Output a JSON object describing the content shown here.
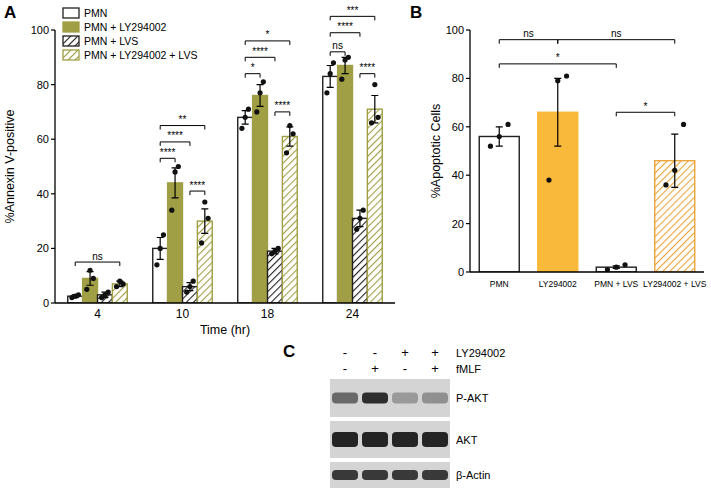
{
  "chart_data": [
    {
      "type": "bar",
      "panel_label": "A",
      "y_label": "%Annexin V-positive",
      "x_label": "Time (hr)",
      "categories": [
        "4",
        "10",
        "18",
        "24"
      ],
      "series": [
        {
          "name": "PMN",
          "color": "#231f20",
          "line_style": "open",
          "values": [
            2.5,
            20,
            68,
            83
          ],
          "errors": [
            0.5,
            4,
            2.5,
            4
          ],
          "points": [
            [
              2,
              2.5,
              3
            ],
            [
              14,
              20,
              25
            ],
            [
              64,
              68,
              71
            ],
            [
              77,
              84,
              88
            ]
          ]
        },
        {
          "name": "PMN + LY294002",
          "color": "#a09f45",
          "line_style": "solid",
          "values": [
            9,
            44,
            76,
            87
          ],
          "errors": [
            2.5,
            5.5,
            4,
            3
          ],
          "points": [
            [
              5,
              12,
              9
            ],
            [
              34,
              48,
              50
            ],
            [
              70,
              77,
              81
            ],
            [
              82,
              89,
              90
            ]
          ]
        },
        {
          "name": "PMN + LVS",
          "color": "#231f20",
          "line_style": "hatched",
          "values": [
            3,
            6,
            19,
            31
          ],
          "errors": [
            1,
            1.5,
            1,
            3
          ],
          "points": [
            [
              2,
              3,
              4
            ],
            [
              4,
              6,
              8
            ],
            [
              18,
              19,
              20
            ],
            [
              27,
              31,
              34
            ]
          ]
        },
        {
          "name": "PMN + LY294002 + LVS",
          "color": "#a09f45",
          "line_style": "hatched",
          "values": [
            7,
            30,
            61,
            71
          ],
          "errors": [
            1,
            4.5,
            3.5,
            5
          ],
          "points": [
            [
              6,
              8,
              7
            ],
            [
              22,
              37,
              31
            ],
            [
              55,
              65,
              62
            ],
            [
              66,
              80,
              68
            ]
          ]
        }
      ],
      "ylim": [
        0,
        100
      ],
      "yticks": [
        0,
        20,
        40,
        60,
        80,
        100
      ],
      "grid": false,
      "legend": "top-left",
      "annotations": [
        {
          "text": "ns",
          "from": [
            0,
            0
          ],
          "to": [
            0,
            3
          ],
          "y": 15
        },
        {
          "text": "****",
          "from": [
            1,
            0
          ],
          "to": [
            1,
            1
          ],
          "y": 53
        },
        {
          "text": "****",
          "from": [
            1,
            2
          ],
          "to": [
            1,
            3
          ],
          "y": 41
        },
        {
          "text": "****",
          "from": [
            1,
            0
          ],
          "to": [
            1,
            2
          ],
          "y": 59
        },
        {
          "text": "**",
          "from": [
            1,
            0
          ],
          "to": [
            1,
            3
          ],
          "y": 65
        },
        {
          "text": "*",
          "from": [
            2,
            0
          ],
          "to": [
            2,
            1
          ],
          "y": 84
        },
        {
          "text": "****",
          "from": [
            2,
            2
          ],
          "to": [
            2,
            3
          ],
          "y": 70
        },
        {
          "text": "****",
          "from": [
            2,
            0
          ],
          "to": [
            2,
            2
          ],
          "y": 90
        },
        {
          "text": "*",
          "from": [
            2,
            0
          ],
          "to": [
            2,
            3
          ],
          "y": 96
        },
        {
          "text": "ns",
          "from": [
            3,
            0
          ],
          "to": [
            3,
            1
          ],
          "y": 92
        },
        {
          "text": "****",
          "from": [
            3,
            2
          ],
          "to": [
            3,
            3
          ],
          "y": 84
        },
        {
          "text": "****",
          "from": [
            3,
            0
          ],
          "to": [
            3,
            2
          ],
          "y": 99
        },
        {
          "text": "***",
          "from": [
            3,
            0
          ],
          "to": [
            3,
            3
          ],
          "y": 105
        }
      ]
    },
    {
      "type": "bar",
      "panel_label": "B",
      "y_label": "%Apoptotic Cells",
      "categories": [
        "PMN",
        "LY294002",
        "PMN + LVS",
        "LY294002 + LVS"
      ],
      "series": [
        {
          "values": [
            56,
            66,
            2,
            46
          ],
          "errors": [
            4,
            14,
            0.5,
            11
          ],
          "points": [
            [
              52,
              56,
              61
            ],
            [
              38,
              79,
              81
            ],
            [
              1,
              2,
              3
            ],
            [
              36,
              42,
              61
            ]
          ],
          "colors": [
            "#231f20",
            "#f9b93b",
            "#231f20",
            "#eba53a"
          ],
          "line_style": [
            "open",
            "solid",
            "open",
            "hatched"
          ]
        }
      ],
      "ylim": [
        0,
        100
      ],
      "yticks": [
        0,
        20,
        40,
        60,
        80,
        100
      ],
      "grid": false,
      "annotations": [
        {
          "text": "ns",
          "from": 0,
          "to": 1,
          "y": 96
        },
        {
          "text": "ns",
          "from": 1,
          "to": 3,
          "y": 96
        },
        {
          "text": "*",
          "from": 0,
          "to": 2,
          "y": 86
        },
        {
          "text": "*",
          "from": 2,
          "to": 3,
          "y": 66
        }
      ]
    }
  ],
  "blot": {
    "panel_label": "C",
    "conditions": [
      {
        "label": "LY294002",
        "signs": [
          "-",
          "-",
          "+",
          "+"
        ]
      },
      {
        "label": "fMLF",
        "signs": [
          "-",
          "+",
          "-",
          "+"
        ]
      }
    ],
    "rows": [
      {
        "label": "P-AKT",
        "intensity": [
          0.55,
          0.85,
          0.3,
          0.35
        ]
      },
      {
        "label": "AKT",
        "intensity": [
          0.9,
          0.9,
          0.9,
          0.9
        ]
      },
      {
        "label": "β-Actin",
        "intensity": [
          0.8,
          0.8,
          0.8,
          0.8
        ]
      }
    ]
  }
}
